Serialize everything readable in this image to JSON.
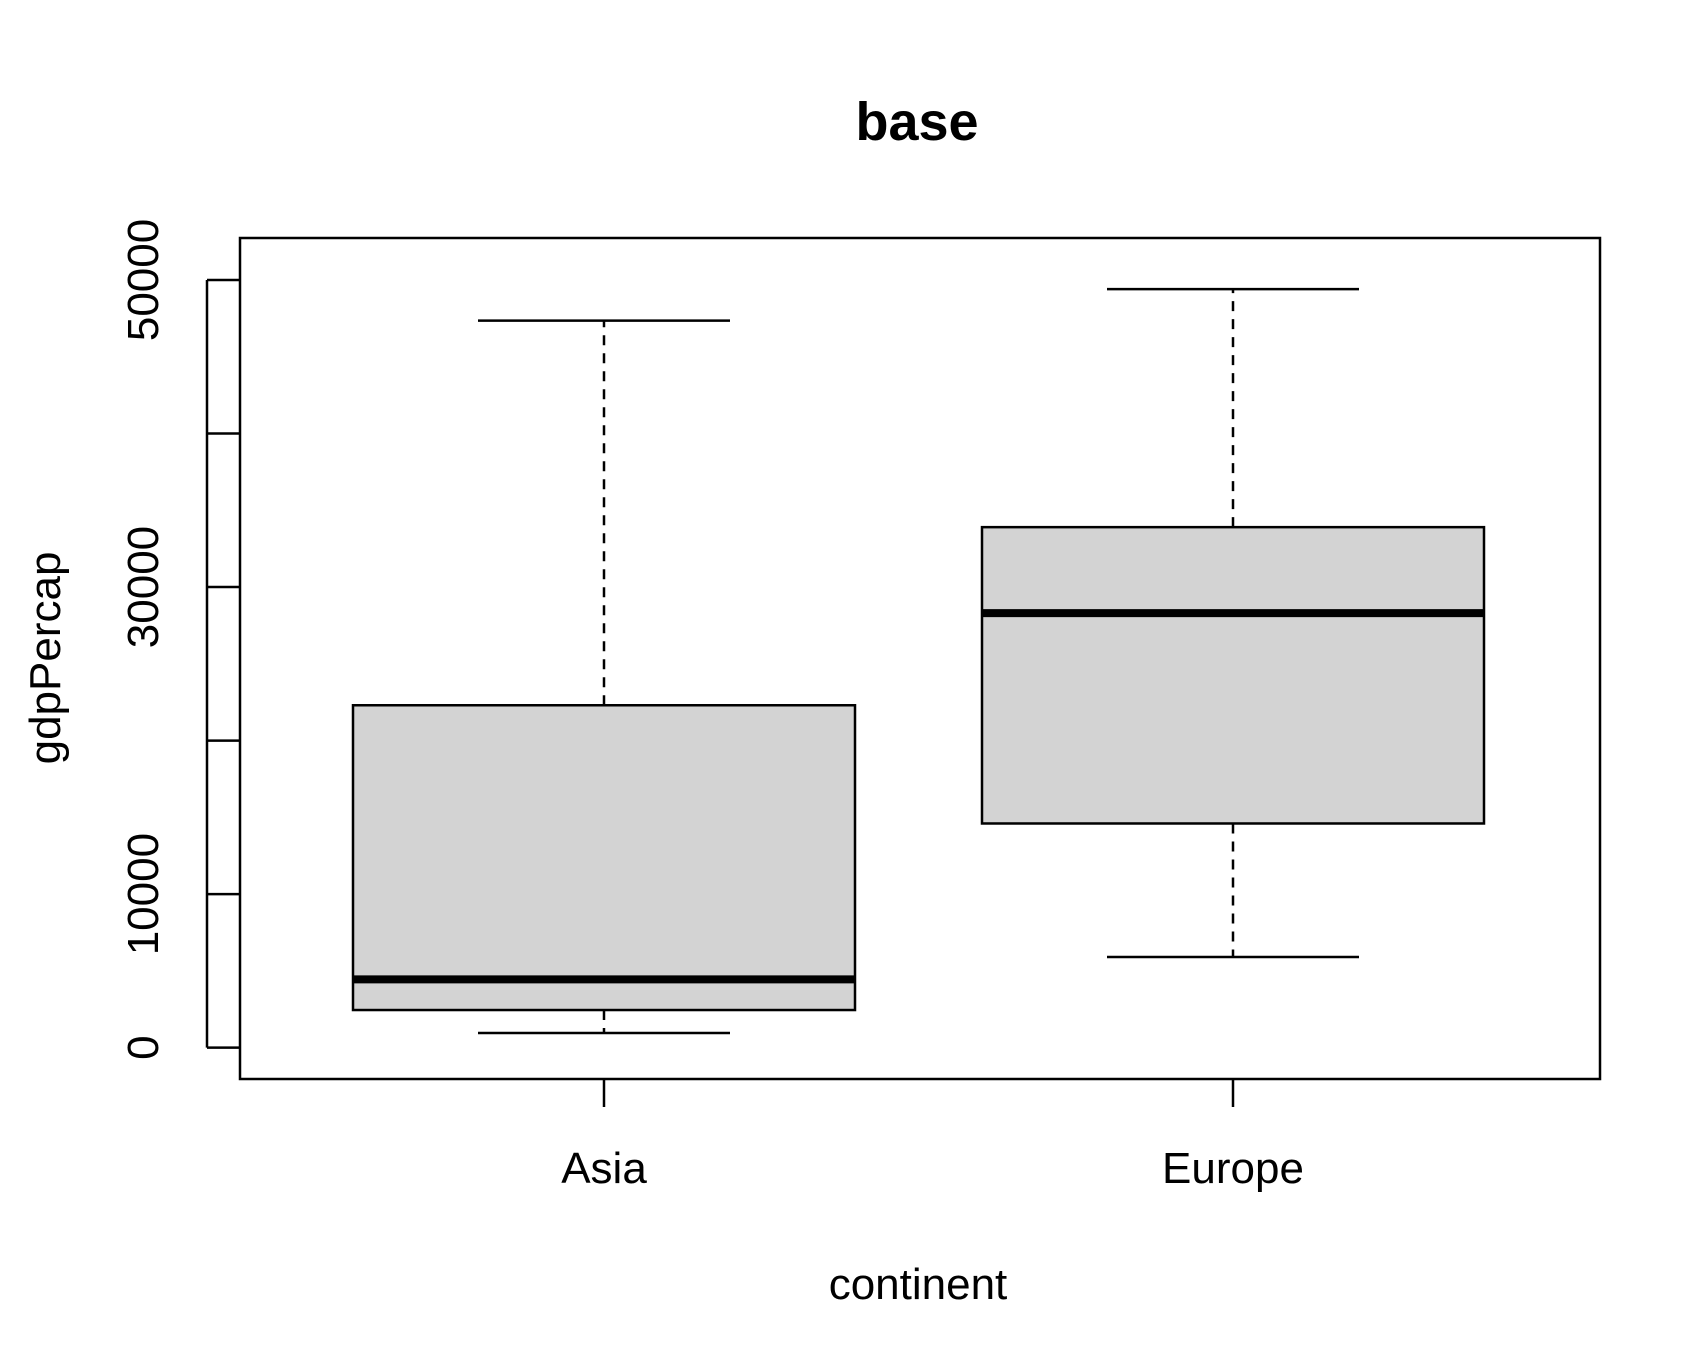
{
  "chart_data": {
    "type": "box",
    "title": "base",
    "xlabel": "continent",
    "ylabel": "gdpPercap",
    "categories": [
      "Asia",
      "Europe"
    ],
    "ylim": [
      -1000,
      51300
    ],
    "yticks": [
      0,
      10000,
      20000,
      30000,
      40000,
      50000
    ],
    "ytick_labels": [
      "0",
      "10000",
      "",
      "30000",
      "",
      "50000"
    ],
    "boxes": [
      {
        "category": "Asia",
        "min": 950,
        "q1": 2450,
        "median": 4450,
        "q3": 22300,
        "max": 47350
      },
      {
        "category": "Europe",
        "min": 5900,
        "q1": 14600,
        "median": 28300,
        "q3": 33900,
        "max": 49400
      }
    ],
    "grid": false,
    "legend": "none",
    "colors": {
      "box_fill": "#d3d3d3",
      "stroke": "#000000"
    }
  }
}
